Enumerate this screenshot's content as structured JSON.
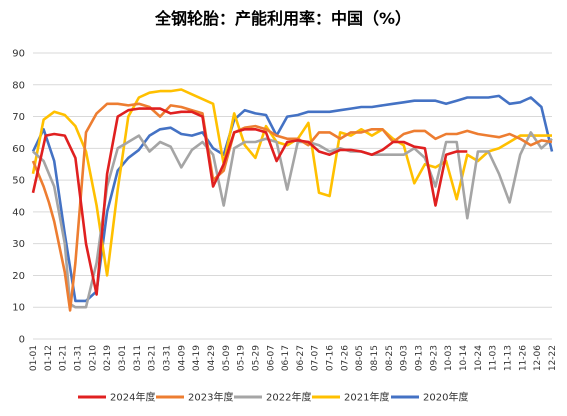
{
  "chart_data": {
    "type": "line",
    "title": "全钢轮胎：产能利用率：中国（%）",
    "ylim": [
      0,
      90
    ],
    "yticks": [
      0,
      10,
      20,
      30,
      40,
      50,
      60,
      70,
      80,
      90
    ],
    "grid": "horizontal",
    "legend_position": "bottom",
    "x_tick_labels": [
      "01-01",
      "01-12",
      "01-21",
      "01-31",
      "02-10",
      "02-19",
      "03-01",
      "03-11",
      "03-21",
      "03-31",
      "04-09",
      "04-19",
      "04-29",
      "05-09",
      "05-19",
      "05-29",
      "06-07",
      "06-17",
      "06-27",
      "07-07",
      "07-16",
      "07-26",
      "08-05",
      "08-15",
      "08-25",
      "09-03",
      "09-13",
      "09-23",
      "10-03",
      "10-14",
      "10-24",
      "11-03",
      "11-13",
      "11-26",
      "12-06",
      "12-22"
    ],
    "series": [
      {
        "name": "2024年度",
        "color": "#e02020",
        "points": [
          [
            0,
            46
          ],
          [
            1.2,
            64
          ],
          [
            2,
            64.5
          ],
          [
            3,
            64
          ],
          [
            4,
            57
          ],
          [
            5,
            30
          ],
          [
            6,
            14
          ],
          [
            7,
            52
          ],
          [
            8,
            70
          ],
          [
            9,
            72
          ],
          [
            10,
            72.5
          ],
          [
            11,
            72.5
          ],
          [
            12,
            72.5
          ],
          [
            13,
            71
          ],
          [
            14,
            71.5
          ],
          [
            15,
            71.5
          ],
          [
            16,
            70
          ],
          [
            17,
            48
          ],
          [
            18,
            55
          ],
          [
            19,
            65
          ],
          [
            20,
            66
          ],
          [
            21,
            66
          ],
          [
            22,
            65
          ],
          [
            23,
            56
          ],
          [
            24,
            62
          ],
          [
            25,
            62.5
          ],
          [
            26,
            62
          ],
          [
            27,
            59
          ],
          [
            28,
            58
          ],
          [
            29,
            59.5
          ],
          [
            30,
            59.5
          ],
          [
            31,
            59
          ],
          [
            32,
            58
          ],
          [
            33,
            59.5
          ],
          [
            34,
            62
          ],
          [
            35,
            62
          ],
          [
            36,
            60.5
          ],
          [
            37,
            60
          ],
          [
            38,
            42
          ],
          [
            39,
            58
          ],
          [
            40,
            59
          ],
          [
            41,
            59
          ]
        ]
      },
      {
        "name": "2023年度",
        "color": "#ed7d31",
        "points": [
          [
            0,
            56
          ],
          [
            1,
            48
          ],
          [
            1.5,
            43
          ],
          [
            2,
            37
          ],
          [
            3,
            21
          ],
          [
            3.5,
            9
          ],
          [
            4,
            24
          ],
          [
            5,
            65
          ],
          [
            6,
            71
          ],
          [
            7,
            74
          ],
          [
            8,
            74
          ],
          [
            9,
            73.5
          ],
          [
            10,
            74
          ],
          [
            11,
            73
          ],
          [
            12,
            70
          ],
          [
            13,
            73.5
          ],
          [
            14,
            73
          ],
          [
            15,
            72
          ],
          [
            16,
            71
          ],
          [
            17,
            50
          ],
          [
            18,
            53
          ],
          [
            19,
            65
          ],
          [
            20,
            66.5
          ],
          [
            21,
            67
          ],
          [
            22,
            66
          ],
          [
            23,
            64
          ],
          [
            24,
            63
          ],
          [
            25,
            63
          ],
          [
            26,
            61
          ],
          [
            27,
            65
          ],
          [
            28,
            65
          ],
          [
            29,
            63
          ],
          [
            30,
            65
          ],
          [
            31,
            65
          ],
          [
            32,
            66
          ],
          [
            33,
            66
          ],
          [
            34,
            62
          ],
          [
            35,
            64.5
          ],
          [
            36,
            65.5
          ],
          [
            37,
            65.5
          ],
          [
            38,
            63
          ],
          [
            39,
            64.5
          ],
          [
            40,
            64.5
          ],
          [
            41,
            65.5
          ],
          [
            42,
            64.5
          ],
          [
            43,
            64
          ],
          [
            44,
            63.5
          ],
          [
            45,
            64.5
          ],
          [
            46,
            63
          ],
          [
            47,
            61
          ],
          [
            48,
            62.5
          ],
          [
            49,
            62
          ]
        ]
      },
      {
        "name": "2022年度",
        "color": "#a5a5a5",
        "points": [
          [
            0,
            59
          ],
          [
            1,
            56
          ],
          [
            2,
            48
          ],
          [
            3,
            30
          ],
          [
            3.5,
            11
          ],
          [
            4,
            10
          ],
          [
            5,
            10
          ],
          [
            6,
            24
          ],
          [
            7,
            48
          ],
          [
            8,
            60
          ],
          [
            9,
            62
          ],
          [
            10,
            64
          ],
          [
            11,
            59
          ],
          [
            12,
            62
          ],
          [
            13,
            60.5
          ],
          [
            14,
            54
          ],
          [
            15,
            59.5
          ],
          [
            16,
            62
          ],
          [
            17,
            58
          ],
          [
            18,
            42
          ],
          [
            19,
            60
          ],
          [
            20,
            62
          ],
          [
            21,
            62
          ],
          [
            22,
            63
          ],
          [
            23,
            62
          ],
          [
            24,
            47
          ],
          [
            25,
            62
          ],
          [
            26,
            62
          ],
          [
            27,
            61
          ],
          [
            28,
            59
          ],
          [
            29,
            60
          ],
          [
            30,
            59
          ],
          [
            31,
            59
          ],
          [
            32,
            58
          ],
          [
            33,
            58
          ],
          [
            34,
            58
          ],
          [
            35,
            58
          ],
          [
            36,
            60
          ],
          [
            37,
            57
          ],
          [
            38,
            48
          ],
          [
            39,
            62
          ],
          [
            40,
            62
          ],
          [
            41,
            38
          ],
          [
            42,
            59
          ],
          [
            43,
            59
          ],
          [
            44,
            52
          ],
          [
            45,
            43
          ],
          [
            46,
            58
          ],
          [
            47,
            65
          ],
          [
            48,
            60
          ],
          [
            49,
            63
          ]
        ]
      },
      {
        "name": "2021年度",
        "color": "#ffc000",
        "points": [
          [
            0,
            52
          ],
          [
            1,
            69
          ],
          [
            2,
            71.5
          ],
          [
            3,
            70.5
          ],
          [
            4,
            67
          ],
          [
            5,
            59
          ],
          [
            6,
            42
          ],
          [
            7,
            20
          ],
          [
            8,
            47
          ],
          [
            9,
            70
          ],
          [
            10,
            76
          ],
          [
            11,
            77.5
          ],
          [
            12,
            78
          ],
          [
            13,
            78
          ],
          [
            14,
            78.5
          ],
          [
            15,
            77
          ],
          [
            16,
            75.5
          ],
          [
            17,
            74
          ],
          [
            18,
            55
          ],
          [
            19,
            71
          ],
          [
            20,
            61
          ],
          [
            21,
            57
          ],
          [
            22,
            67
          ],
          [
            23,
            62
          ],
          [
            24,
            61
          ],
          [
            25,
            63
          ],
          [
            26,
            68
          ],
          [
            27,
            46
          ],
          [
            28,
            45
          ],
          [
            29,
            65
          ],
          [
            30,
            64
          ],
          [
            31,
            66
          ],
          [
            32,
            64
          ],
          [
            33,
            66
          ],
          [
            34,
            63
          ],
          [
            35,
            61
          ],
          [
            36,
            49
          ],
          [
            37,
            55
          ],
          [
            38,
            54
          ],
          [
            39,
            56
          ],
          [
            40,
            44
          ],
          [
            41,
            58
          ],
          [
            42,
            56
          ],
          [
            43,
            59
          ],
          [
            44,
            60
          ],
          [
            45,
            62
          ],
          [
            46,
            64
          ],
          [
            47,
            64
          ],
          [
            48,
            64
          ],
          [
            49,
            64
          ]
        ]
      },
      {
        "name": "2020年度",
        "color": "#4472c4",
        "points": [
          [
            0,
            59
          ],
          [
            1,
            66
          ],
          [
            2,
            56
          ],
          [
            3,
            33
          ],
          [
            4,
            12
          ],
          [
            5,
            12
          ],
          [
            6,
            15
          ],
          [
            7,
            40
          ],
          [
            8,
            53
          ],
          [
            9,
            57
          ],
          [
            10,
            59.5
          ],
          [
            11,
            64
          ],
          [
            12,
            66
          ],
          [
            13,
            66.5
          ],
          [
            14,
            64.5
          ],
          [
            15,
            64
          ],
          [
            16,
            65
          ],
          [
            17,
            60
          ],
          [
            18,
            58
          ],
          [
            19,
            69
          ],
          [
            20,
            72
          ],
          [
            21,
            71
          ],
          [
            22,
            70.5
          ],
          [
            23,
            64
          ],
          [
            24,
            70
          ],
          [
            25,
            70.5
          ],
          [
            26,
            71.5
          ],
          [
            27,
            71.5
          ],
          [
            28,
            71.5
          ],
          [
            29,
            72
          ],
          [
            30,
            72.5
          ],
          [
            31,
            73
          ],
          [
            32,
            73
          ],
          [
            33,
            73.5
          ],
          [
            34,
            74
          ],
          [
            35,
            74.5
          ],
          [
            36,
            75
          ],
          [
            37,
            75
          ],
          [
            38,
            75
          ],
          [
            39,
            74
          ],
          [
            40,
            75
          ],
          [
            41,
            76
          ],
          [
            42,
            76
          ],
          [
            43,
            76
          ],
          [
            44,
            76.5
          ],
          [
            45,
            74
          ],
          [
            46,
            74.5
          ],
          [
            47,
            76
          ],
          [
            48,
            73
          ],
          [
            49,
            59
          ]
        ]
      }
    ]
  }
}
